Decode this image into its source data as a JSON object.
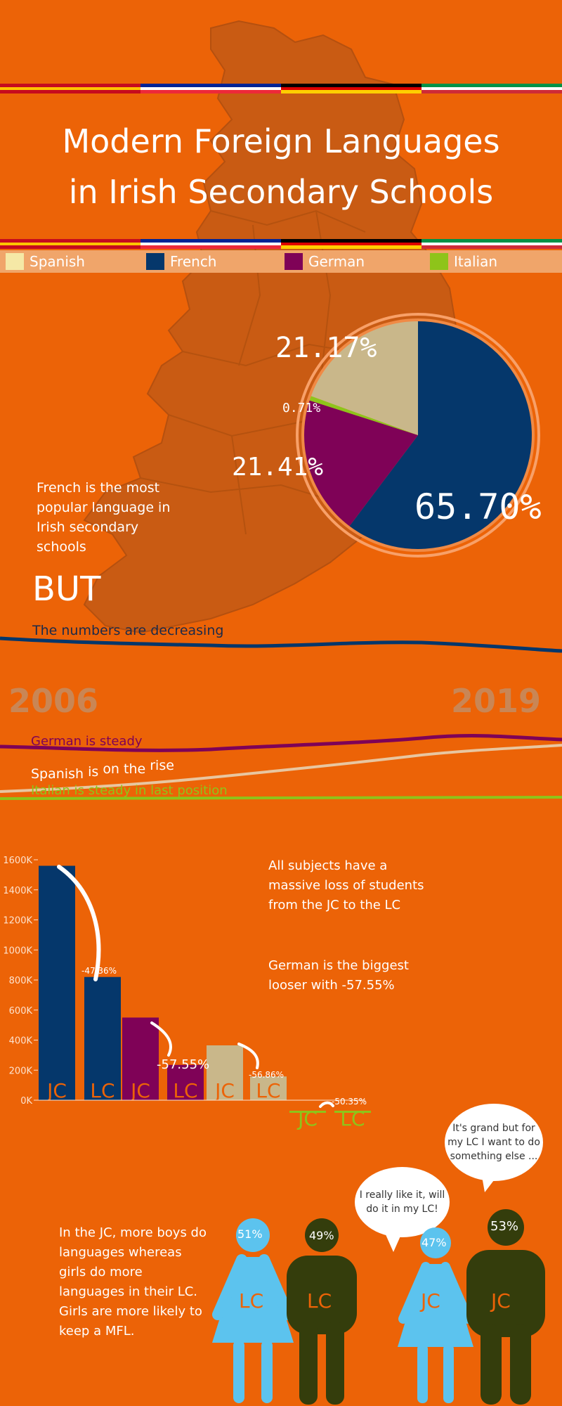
{
  "colors": {
    "background": "#ec6307",
    "spanish": "#c9b78a",
    "french": "#05376b",
    "german": "#7f0257",
    "italian": "#8ec41a",
    "female": "#5cc3ee",
    "male": "#343d0c"
  },
  "title": {
    "line1": "Modern Foreign Languages",
    "line2": "in Irish Secondary Schools"
  },
  "legend": [
    {
      "label": "Spanish",
      "color": "#f5e8a6"
    },
    {
      "label": "French",
      "color": "#05376b"
    },
    {
      "label": "German",
      "color": "#7f0257"
    },
    {
      "label": "Italian",
      "color": "#8ec41a"
    }
  ],
  "pie": {
    "slices": [
      {
        "language": "French",
        "percent": 65.7,
        "label": "65.70%"
      },
      {
        "language": "German",
        "percent": 21.41,
        "label": "21.41%"
      },
      {
        "language": "Italian",
        "percent": 0.71,
        "label": "0.71%"
      },
      {
        "language": "Spanish",
        "percent": 21.17,
        "label": "21.17%"
      }
    ]
  },
  "text": {
    "french_most_popular": "French is the most popular language in Irish secondary schools",
    "but": "BUT",
    "decreasing": "The numbers are decreasing",
    "year_start": "2006",
    "year_end": "2019",
    "german_steady": "German is steady",
    "spanish_rise_a": "Spanish",
    "spanish_rise_b": "is",
    "spanish_rise_c": "on the",
    "spanish_rise_d": "rise",
    "italian_steady": "Italian is steady in last position",
    "loss_text": "All subjects have a massive loss of students from the JC to the LC",
    "german_loser": "German is the biggest looser with -57.55%",
    "gender_text": "In the JC, more boys do languages whereas girls do more languages in their LC. Girls are more likely to keep a MFL.",
    "bubble1": "I really like it, will do it in my LC!",
    "bubble2": "It's grand but for my LC I want to do something else ..."
  },
  "chart_data": {
    "type": "bar",
    "ylim": [
      0,
      1600
    ],
    "yticks": [
      "1600K",
      "1400K",
      "1200K",
      "1000K",
      "800K",
      "600K",
      "400K",
      "200K",
      "0K"
    ],
    "bars": [
      {
        "language": "French",
        "level": "JC",
        "value": 1560
      },
      {
        "language": "French",
        "level": "LC",
        "value": 820
      },
      {
        "language": "German",
        "level": "JC",
        "value": 550
      },
      {
        "language": "German",
        "level": "LC",
        "value": 235
      },
      {
        "language": "Spanish",
        "level": "JC",
        "value": 365
      },
      {
        "language": "Spanish",
        "level": "LC",
        "value": 158
      },
      {
        "language": "Italian",
        "level": "JC",
        "value": 14
      },
      {
        "language": "Italian",
        "level": "LC",
        "value": 7
      }
    ],
    "drops": [
      "-47.36%",
      "-57.55%",
      "-56.86%",
      "-50.35%"
    ]
  },
  "gender": {
    "lc_female": "51%",
    "lc_male": "49%",
    "jc_female": "47%",
    "jc_male": "53%",
    "lc": "LC",
    "jc": "JC"
  }
}
